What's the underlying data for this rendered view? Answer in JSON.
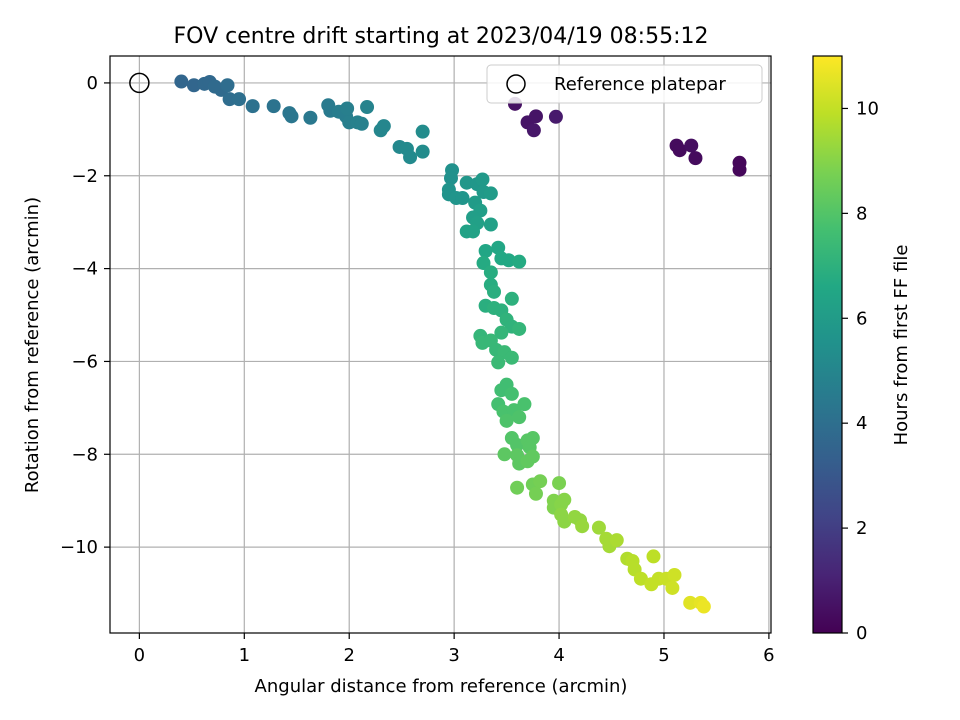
{
  "chart_data": {
    "type": "scatter",
    "title": "FOV centre drift starting at 2023/04/19 08:55:12",
    "xlabel": "Angular distance from reference (arcmin)",
    "ylabel": "Rotation from reference (arcmin)",
    "xlim": [
      -0.28,
      6.02
    ],
    "ylim": [
      -11.85,
      0.58
    ],
    "xticks": [
      0,
      1,
      2,
      3,
      4,
      5,
      6
    ],
    "yticks": [
      0,
      -2,
      -4,
      -6,
      -8,
      -10
    ],
    "grid": true,
    "legend": {
      "placement": "top-right",
      "entries": [
        "Reference platepar"
      ]
    },
    "reference_point": {
      "x": 0,
      "y": 0
    },
    "colorbar": {
      "label": "Hours from first FF file",
      "range": [
        0,
        11
      ],
      "ticks": [
        0,
        2,
        4,
        6,
        8,
        10
      ],
      "colormap": "viridis"
    },
    "series": [
      {
        "points": [
          {
            "x": 3.58,
            "y": -0.45,
            "h": 0.5
          },
          {
            "x": 3.7,
            "y": -0.85,
            "h": 0.6
          },
          {
            "x": 3.78,
            "y": -0.72,
            "h": 0.6
          },
          {
            "x": 3.76,
            "y": -1.02,
            "h": 0.7
          },
          {
            "x": 3.97,
            "y": -0.73,
            "h": 0.8
          },
          {
            "x": 5.12,
            "y": -1.35,
            "h": 0.3
          },
          {
            "x": 5.15,
            "y": -1.45,
            "h": 0.3
          },
          {
            "x": 5.26,
            "y": -1.35,
            "h": 0.4
          },
          {
            "x": 5.3,
            "y": -1.62,
            "h": 0.3
          },
          {
            "x": 5.72,
            "y": -1.72,
            "h": 0.2
          },
          {
            "x": 5.72,
            "y": -1.87,
            "h": 0.2
          },
          {
            "x": 0.4,
            "y": 0.03,
            "h": 3.6
          },
          {
            "x": 0.52,
            "y": -0.05,
            "h": 3.6
          },
          {
            "x": 0.62,
            "y": -0.02,
            "h": 3.7
          },
          {
            "x": 0.67,
            "y": 0.02,
            "h": 3.7
          },
          {
            "x": 0.72,
            "y": -0.08,
            "h": 3.8
          },
          {
            "x": 0.78,
            "y": -0.15,
            "h": 3.8
          },
          {
            "x": 0.84,
            "y": -0.05,
            "h": 3.9
          },
          {
            "x": 0.86,
            "y": -0.35,
            "h": 3.9
          },
          {
            "x": 0.95,
            "y": -0.35,
            "h": 4.0
          },
          {
            "x": 1.08,
            "y": -0.5,
            "h": 4.1
          },
          {
            "x": 1.28,
            "y": -0.5,
            "h": 4.2
          },
          {
            "x": 1.43,
            "y": -0.65,
            "h": 4.3
          },
          {
            "x": 1.45,
            "y": -0.72,
            "h": 4.3
          },
          {
            "x": 1.63,
            "y": -0.75,
            "h": 4.4
          },
          {
            "x": 1.8,
            "y": -0.48,
            "h": 4.5
          },
          {
            "x": 1.82,
            "y": -0.6,
            "h": 4.5
          },
          {
            "x": 1.9,
            "y": -0.62,
            "h": 4.6
          },
          {
            "x": 1.97,
            "y": -0.72,
            "h": 4.6
          },
          {
            "x": 1.98,
            "y": -0.55,
            "h": 4.7
          },
          {
            "x": 2.0,
            "y": -0.85,
            "h": 4.7
          },
          {
            "x": 2.08,
            "y": -0.85,
            "h": 4.8
          },
          {
            "x": 2.12,
            "y": -0.88,
            "h": 4.8
          },
          {
            "x": 2.17,
            "y": -0.52,
            "h": 4.9
          },
          {
            "x": 2.3,
            "y": -1.02,
            "h": 5.0
          },
          {
            "x": 2.33,
            "y": -0.93,
            "h": 5.0
          },
          {
            "x": 2.48,
            "y": -1.38,
            "h": 5.1
          },
          {
            "x": 2.55,
            "y": -1.42,
            "h": 5.2
          },
          {
            "x": 2.58,
            "y": -1.6,
            "h": 5.2
          },
          {
            "x": 2.7,
            "y": -1.05,
            "h": 5.3
          },
          {
            "x": 2.7,
            "y": -1.48,
            "h": 5.3
          },
          {
            "x": 2.98,
            "y": -1.88,
            "h": 5.5
          },
          {
            "x": 2.97,
            "y": -2.05,
            "h": 5.5
          },
          {
            "x": 2.95,
            "y": -2.3,
            "h": 5.6
          },
          {
            "x": 2.95,
            "y": -2.4,
            "h": 5.6
          },
          {
            "x": 3.02,
            "y": -2.48,
            "h": 5.7
          },
          {
            "x": 3.08,
            "y": -2.48,
            "h": 5.7
          },
          {
            "x": 3.12,
            "y": -2.15,
            "h": 5.8
          },
          {
            "x": 3.22,
            "y": -2.18,
            "h": 5.8
          },
          {
            "x": 3.27,
            "y": -2.08,
            "h": 5.9
          },
          {
            "x": 3.28,
            "y": -2.35,
            "h": 5.9
          },
          {
            "x": 3.35,
            "y": -2.38,
            "h": 6.0
          },
          {
            "x": 3.2,
            "y": -2.58,
            "h": 6.0
          },
          {
            "x": 3.25,
            "y": -2.75,
            "h": 6.1
          },
          {
            "x": 3.18,
            "y": -2.9,
            "h": 6.1
          },
          {
            "x": 3.22,
            "y": -3.02,
            "h": 6.2
          },
          {
            "x": 3.35,
            "y": -3.05,
            "h": 6.2
          },
          {
            "x": 3.12,
            "y": -3.2,
            "h": 6.3
          },
          {
            "x": 3.18,
            "y": -3.2,
            "h": 6.3
          },
          {
            "x": 3.3,
            "y": -3.62,
            "h": 6.5
          },
          {
            "x": 3.42,
            "y": -3.55,
            "h": 6.5
          },
          {
            "x": 3.45,
            "y": -3.78,
            "h": 6.6
          },
          {
            "x": 3.52,
            "y": -3.82,
            "h": 6.6
          },
          {
            "x": 3.62,
            "y": -3.85,
            "h": 6.7
          },
          {
            "x": 3.28,
            "y": -3.88,
            "h": 6.7
          },
          {
            "x": 3.35,
            "y": -4.08,
            "h": 6.8
          },
          {
            "x": 3.35,
            "y": -4.35,
            "h": 6.8
          },
          {
            "x": 3.38,
            "y": -4.5,
            "h": 6.9
          },
          {
            "x": 3.3,
            "y": -4.8,
            "h": 6.9
          },
          {
            "x": 3.38,
            "y": -4.85,
            "h": 7.0
          },
          {
            "x": 3.45,
            "y": -4.9,
            "h": 7.0
          },
          {
            "x": 3.55,
            "y": -4.65,
            "h": 7.0
          },
          {
            "x": 3.5,
            "y": -5.1,
            "h": 7.1
          },
          {
            "x": 3.55,
            "y": -5.25,
            "h": 7.1
          },
          {
            "x": 3.62,
            "y": -5.3,
            "h": 7.2
          },
          {
            "x": 3.45,
            "y": -5.38,
            "h": 7.2
          },
          {
            "x": 3.25,
            "y": -5.45,
            "h": 7.2
          },
          {
            "x": 3.27,
            "y": -5.6,
            "h": 7.3
          },
          {
            "x": 3.35,
            "y": -5.55,
            "h": 7.3
          },
          {
            "x": 3.4,
            "y": -5.75,
            "h": 7.3
          },
          {
            "x": 3.48,
            "y": -5.8,
            "h": 7.4
          },
          {
            "x": 3.55,
            "y": -5.92,
            "h": 7.4
          },
          {
            "x": 3.42,
            "y": -6.02,
            "h": 7.4
          },
          {
            "x": 3.5,
            "y": -6.5,
            "h": 7.6
          },
          {
            "x": 3.45,
            "y": -6.62,
            "h": 7.6
          },
          {
            "x": 3.55,
            "y": -6.7,
            "h": 7.7
          },
          {
            "x": 3.42,
            "y": -6.92,
            "h": 7.7
          },
          {
            "x": 3.47,
            "y": -7.08,
            "h": 7.8
          },
          {
            "x": 3.57,
            "y": -7.05,
            "h": 7.8
          },
          {
            "x": 3.67,
            "y": -6.92,
            "h": 7.8
          },
          {
            "x": 3.62,
            "y": -7.2,
            "h": 7.9
          },
          {
            "x": 3.5,
            "y": -7.28,
            "h": 7.9
          },
          {
            "x": 3.55,
            "y": -7.65,
            "h": 8.0
          },
          {
            "x": 3.6,
            "y": -7.8,
            "h": 8.0
          },
          {
            "x": 3.7,
            "y": -7.7,
            "h": 8.1
          },
          {
            "x": 3.72,
            "y": -7.85,
            "h": 8.1
          },
          {
            "x": 3.75,
            "y": -7.65,
            "h": 8.1
          },
          {
            "x": 3.48,
            "y": -8.0,
            "h": 8.2
          },
          {
            "x": 3.6,
            "y": -8.02,
            "h": 8.2
          },
          {
            "x": 3.62,
            "y": -8.2,
            "h": 8.2
          },
          {
            "x": 3.7,
            "y": -8.15,
            "h": 8.3
          },
          {
            "x": 3.75,
            "y": -8.05,
            "h": 8.3
          },
          {
            "x": 3.6,
            "y": -8.72,
            "h": 8.6
          },
          {
            "x": 3.75,
            "y": -8.65,
            "h": 8.6
          },
          {
            "x": 3.78,
            "y": -8.85,
            "h": 8.7
          },
          {
            "x": 3.82,
            "y": -8.58,
            "h": 8.7
          },
          {
            "x": 4.0,
            "y": -8.62,
            "h": 8.8
          },
          {
            "x": 3.95,
            "y": -9.0,
            "h": 8.9
          },
          {
            "x": 3.95,
            "y": -9.15,
            "h": 8.9
          },
          {
            "x": 4.02,
            "y": -9.08,
            "h": 9.0
          },
          {
            "x": 4.05,
            "y": -8.98,
            "h": 9.0
          },
          {
            "x": 4.02,
            "y": -9.3,
            "h": 9.1
          },
          {
            "x": 4.05,
            "y": -9.45,
            "h": 9.1
          },
          {
            "x": 4.15,
            "y": -9.35,
            "h": 9.2
          },
          {
            "x": 4.2,
            "y": -9.42,
            "h": 9.2
          },
          {
            "x": 4.22,
            "y": -9.55,
            "h": 9.3
          },
          {
            "x": 4.38,
            "y": -9.58,
            "h": 9.4
          },
          {
            "x": 4.45,
            "y": -9.82,
            "h": 9.5
          },
          {
            "x": 4.48,
            "y": -9.98,
            "h": 9.5
          },
          {
            "x": 4.55,
            "y": -9.85,
            "h": 9.6
          },
          {
            "x": 4.65,
            "y": -10.25,
            "h": 9.7
          },
          {
            "x": 4.7,
            "y": -10.3,
            "h": 9.8
          },
          {
            "x": 4.72,
            "y": -10.48,
            "h": 9.8
          },
          {
            "x": 4.78,
            "y": -10.68,
            "h": 9.9
          },
          {
            "x": 4.88,
            "y": -10.8,
            "h": 10.0
          },
          {
            "x": 4.9,
            "y": -10.2,
            "h": 9.9
          },
          {
            "x": 4.95,
            "y": -10.68,
            "h": 10.0
          },
          {
            "x": 5.02,
            "y": -10.68,
            "h": 10.1
          },
          {
            "x": 5.08,
            "y": -10.88,
            "h": 10.2
          },
          {
            "x": 5.1,
            "y": -10.6,
            "h": 10.2
          },
          {
            "x": 5.25,
            "y": -11.2,
            "h": 10.5
          },
          {
            "x": 5.35,
            "y": -11.2,
            "h": 10.6
          },
          {
            "x": 5.38,
            "y": -11.28,
            "h": 10.7
          }
        ]
      }
    ]
  }
}
